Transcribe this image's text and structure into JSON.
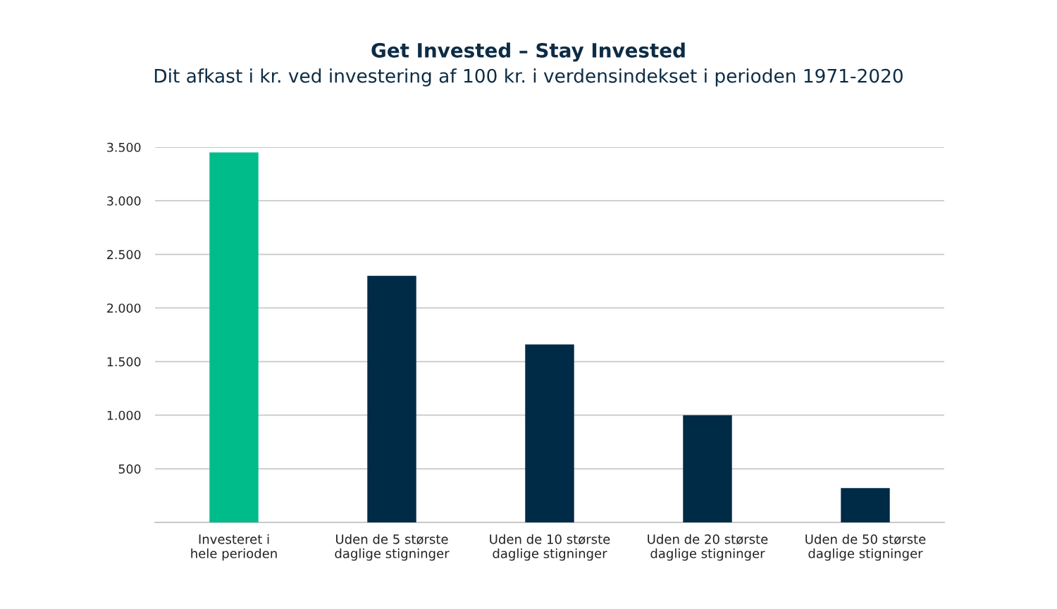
{
  "chart_data": {
    "type": "bar",
    "title": "Get Invested – Stay Invested",
    "subtitle": "Dit afkast i kr. ved investering af 100 kr. i verdensindekset i perioden 1971-2020",
    "categories": [
      "Investeret i\nhele perioden",
      "Uden de 5 største\ndaglige stigninger",
      "Uden de 10 største\ndaglige stigninger",
      "Uden de 20 største\ndaglige stigninger",
      "Uden de 50 største\ndaglige stigninger"
    ],
    "values": [
      3450,
      2300,
      1660,
      1000,
      320
    ],
    "colors": [
      "#00bc8b",
      "#002b47",
      "#002b47",
      "#002b47",
      "#002b47"
    ],
    "ylim": [
      0,
      3500
    ],
    "yticks": [
      {
        "value": 500,
        "label": "500"
      },
      {
        "value": 1000,
        "label": "1.000"
      },
      {
        "value": 1500,
        "label": "1.500"
      },
      {
        "value": 2000,
        "label": "2.000"
      },
      {
        "value": 2500,
        "label": "2.500"
      },
      {
        "value": 3000,
        "label": "3.000"
      },
      {
        "value": 3500,
        "label": "3.500"
      }
    ],
    "grid": "y",
    "legend": false
  }
}
